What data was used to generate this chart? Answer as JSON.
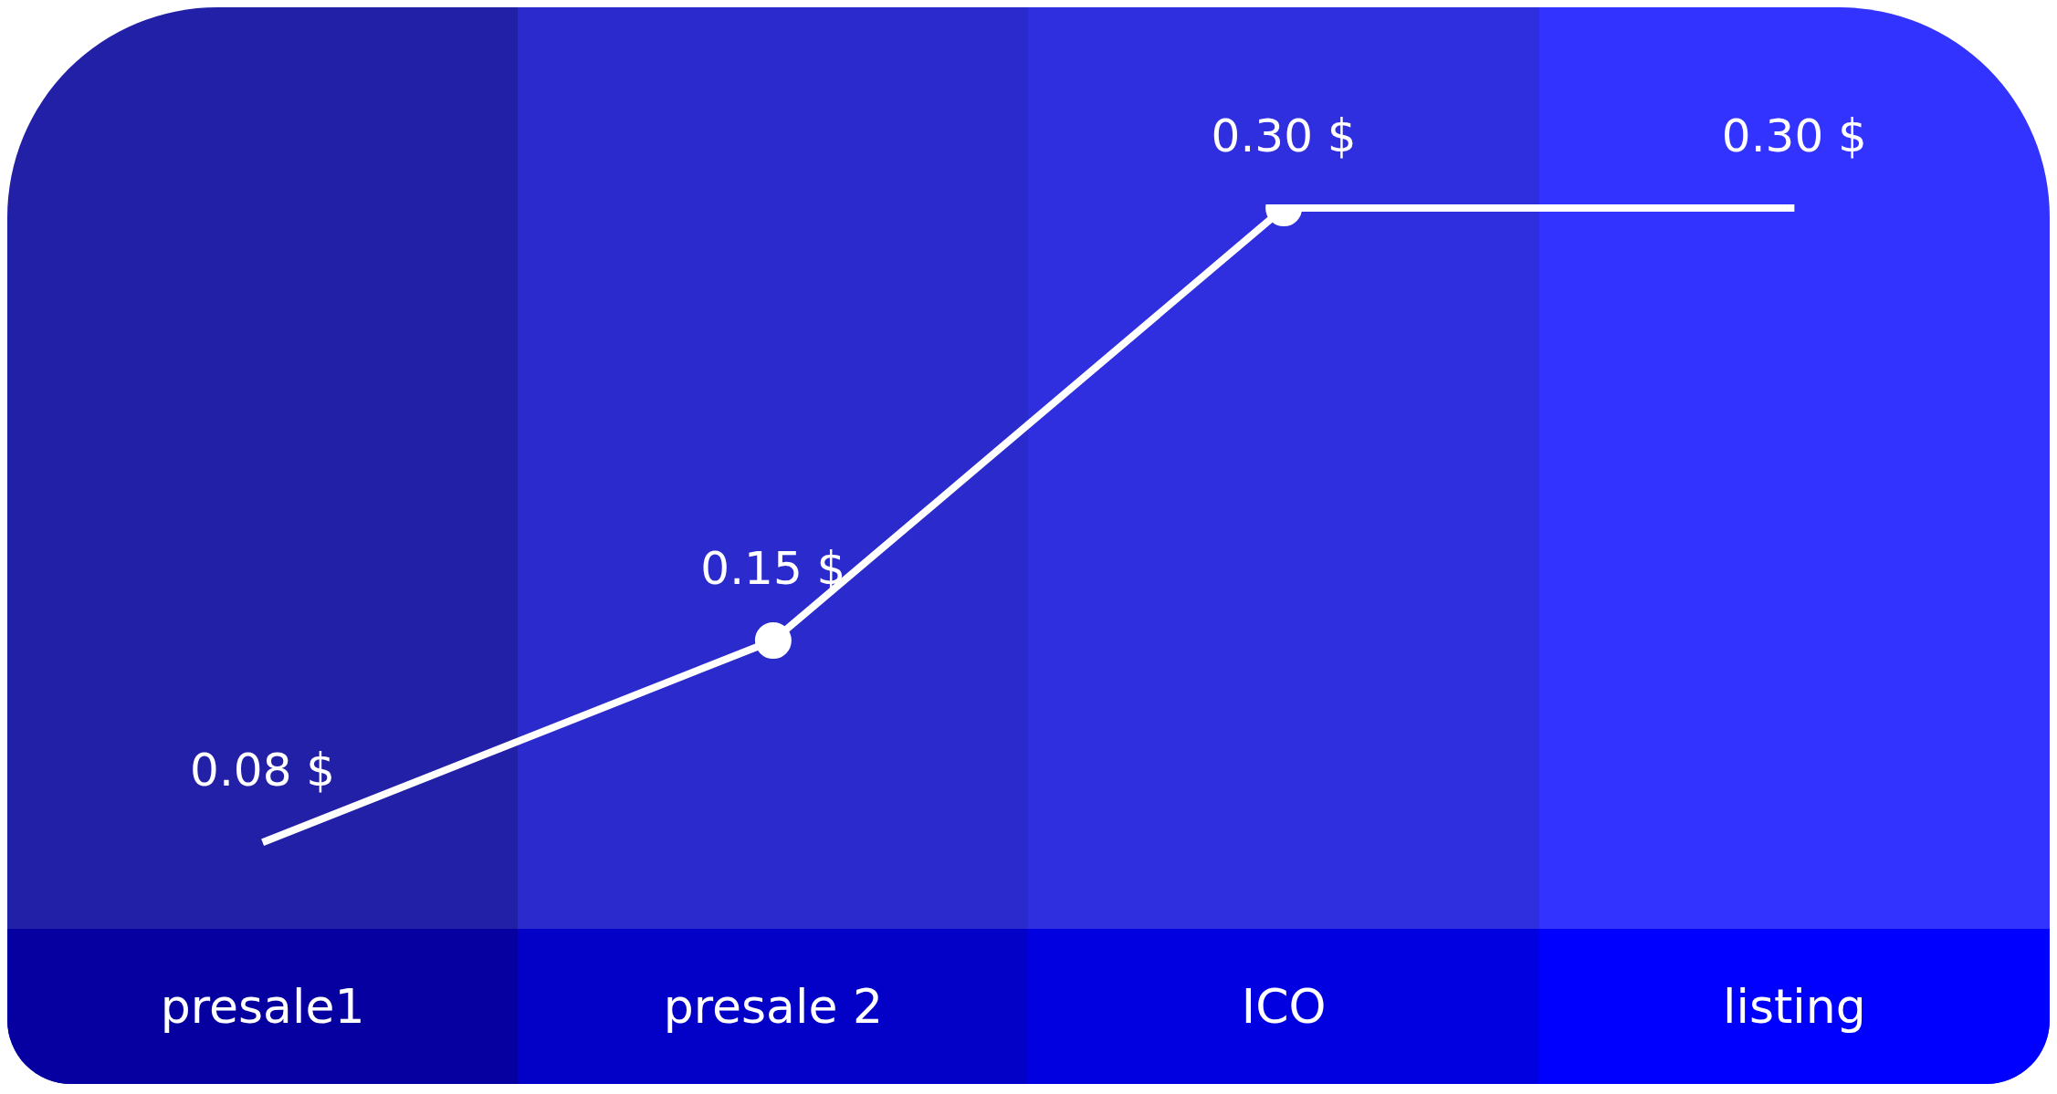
{
  "chart_data": {
    "type": "line",
    "categories": [
      "presale1",
      "presale 2",
      "ICO",
      "listing"
    ],
    "values": [
      0.08,
      0.15,
      0.3,
      0.3
    ],
    "value_labels": [
      "0.08 $",
      "0.15 $",
      "0.30 $",
      "0.30 $"
    ],
    "color": "#ffffff",
    "marker": "circle",
    "tick_labels": "x"
  }
}
